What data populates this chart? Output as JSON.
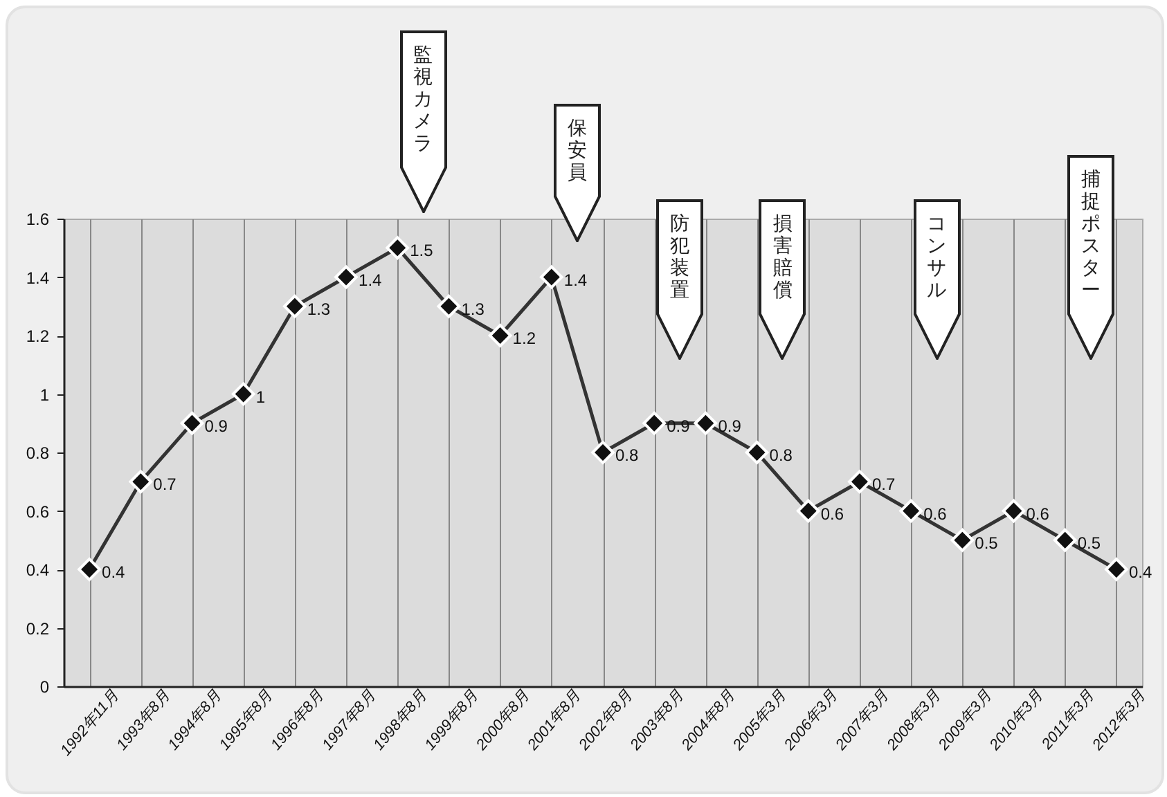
{
  "chart_data": {
    "type": "line",
    "categories": [
      "1992年11月",
      "1993年8月",
      "1994年8月",
      "1995年8月",
      "1996年8月",
      "1997年8月",
      "1998年8月",
      "1999年8月",
      "2000年8月",
      "2001年8月",
      "2002年8月",
      "2003年8月",
      "2004年8月",
      "2005年3月",
      "2006年3月",
      "2007年3月",
      "2008年3月",
      "2009年3月",
      "2010年3月",
      "2011年3月",
      "2012年3月"
    ],
    "series": [
      {
        "color": "#333333",
        "values": [
          0.4,
          0.7,
          0.9,
          1,
          1.3,
          1.4,
          1.5,
          1.3,
          1.2,
          1.4,
          0.8,
          0.9,
          0.9,
          0.8,
          0.6,
          0.7,
          0.6,
          0.5,
          0.6,
          0.5,
          0.4
        ]
      }
    ],
    "ylim": [
      0,
      1.6
    ],
    "yticks": [
      0,
      0.2,
      0.4,
      0.6,
      0.8,
      1,
      1.2,
      1.4,
      1.6
    ],
    "grid": "x",
    "marker": "diamond",
    "line_style": "solid",
    "data_labels": true,
    "annotations": [
      "監視カメラ",
      "保安員",
      "防犯装置",
      "損害賠償",
      "コンサル",
      "捕捉ポスター"
    ]
  }
}
